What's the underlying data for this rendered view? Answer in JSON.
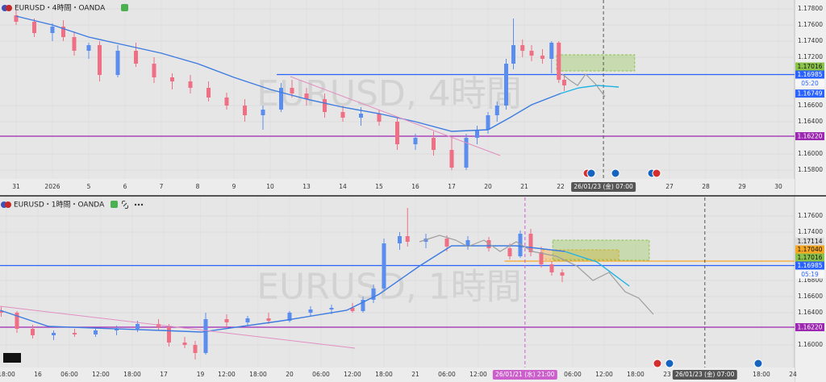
{
  "chart_data": [
    {
      "type": "candlestick",
      "title": "EURUSD・4時間・OANDA",
      "watermark": "EURUSD, 4時間",
      "up_color": "#5b8def",
      "down_color": "#ef6f84",
      "xlim": [
        -0.444,
        21.444
      ],
      "ylim": [
        1.1569,
        1.1791
      ],
      "xticks": [
        {
          "value": 0,
          "label": "31"
        },
        {
          "value": 1,
          "label": "2026"
        },
        {
          "value": 2,
          "label": "5"
        },
        {
          "value": 3,
          "label": "6"
        },
        {
          "value": 4,
          "label": "7"
        },
        {
          "value": 5,
          "label": "8"
        },
        {
          "value": 6,
          "label": "9"
        },
        {
          "value": 7,
          "label": "10"
        },
        {
          "value": 8,
          "label": "13"
        },
        {
          "value": 9,
          "label": "14"
        },
        {
          "value": 10,
          "label": "15"
        },
        {
          "value": 11,
          "label": "16"
        },
        {
          "value": 12,
          "label": "17"
        },
        {
          "value": 13,
          "label": "20"
        },
        {
          "value": 14,
          "label": "21"
        },
        {
          "value": 15,
          "label": "22"
        },
        {
          "value": 18,
          "label": "27"
        },
        {
          "value": 19,
          "label": "28"
        },
        {
          "value": 20,
          "label": "29"
        },
        {
          "value": 21,
          "label": "30"
        }
      ],
      "yticks": [
        {
          "value": 1.178,
          "label": "1.17800"
        },
        {
          "value": 1.176,
          "label": "1.17600"
        },
        {
          "value": 1.174,
          "label": "1.17400"
        },
        {
          "value": 1.172,
          "label": "1.17200"
        },
        {
          "value": 1.166,
          "label": "1.16600"
        },
        {
          "value": 1.164,
          "label": "1.16400"
        },
        {
          "value": 1.16,
          "label": "1.16000"
        },
        {
          "value": 1.158,
          "label": "1.15800"
        }
      ],
      "grid": true,
      "x": [
        0,
        0.5,
        1,
        1.3,
        1.6,
        2,
        2.3,
        2.8,
        3.3,
        3.8,
        4.3,
        4.8,
        5.3,
        5.8,
        6.3,
        6.8,
        7.3,
        7.6,
        8,
        8.5,
        9,
        9.5,
        10,
        10.5,
        11,
        11.5,
        12,
        12.4,
        12.7,
        13,
        13.25,
        13.5,
        13.7,
        13.95,
        14.2,
        14.5,
        14.75,
        14.95,
        15.1
      ],
      "open": [
        1.1772,
        1.1764,
        1.175,
        1.1758,
        1.1745,
        1.1728,
        1.1735,
        1.1698,
        1.1728,
        1.1712,
        1.1695,
        1.169,
        1.1682,
        1.167,
        1.166,
        1.1648,
        1.1655,
        1.1682,
        1.1675,
        1.1668,
        1.1652,
        1.1645,
        1.165,
        1.164,
        1.1612,
        1.162,
        1.1605,
        1.1583,
        1.162,
        1.163,
        1.1648,
        1.166,
        1.1712,
        1.1735,
        1.1728,
        1.1722,
        1.1718,
        1.1738,
        1.1692
      ],
      "high": [
        1.1778,
        1.1768,
        1.1762,
        1.1766,
        1.1752,
        1.1738,
        1.174,
        1.1735,
        1.1738,
        1.172,
        1.17,
        1.1698,
        1.169,
        1.1676,
        1.1668,
        1.166,
        1.1688,
        1.1692,
        1.1682,
        1.1675,
        1.166,
        1.1658,
        1.1655,
        1.1645,
        1.1625,
        1.1628,
        1.162,
        1.1625,
        1.1635,
        1.1652,
        1.1665,
        1.1718,
        1.1768,
        1.1742,
        1.1735,
        1.173,
        1.174,
        1.174,
        1.1698
      ],
      "low": [
        1.176,
        1.1745,
        1.174,
        1.174,
        1.1722,
        1.1718,
        1.169,
        1.1695,
        1.1708,
        1.1688,
        1.168,
        1.1675,
        1.1665,
        1.1655,
        1.164,
        1.163,
        1.1652,
        1.167,
        1.166,
        1.1645,
        1.164,
        1.1635,
        1.1635,
        1.1605,
        1.1605,
        1.1598,
        1.158,
        1.158,
        1.1612,
        1.1625,
        1.164,
        1.1655,
        1.1705,
        1.172,
        1.1715,
        1.1712,
        1.17,
        1.1688,
        1.1678
      ],
      "close": [
        1.1764,
        1.175,
        1.1758,
        1.1745,
        1.1728,
        1.1735,
        1.1698,
        1.1728,
        1.1712,
        1.1695,
        1.169,
        1.1682,
        1.167,
        1.166,
        1.1648,
        1.1655,
        1.1682,
        1.1675,
        1.1668,
        1.1652,
        1.1645,
        1.165,
        1.164,
        1.1612,
        1.162,
        1.1605,
        1.1583,
        1.162,
        1.163,
        1.1648,
        1.166,
        1.1712,
        1.1735,
        1.1728,
        1.1722,
        1.1718,
        1.1738,
        1.1692,
        1.1685
      ],
      "lines": [
        {
          "color": "#3d7be0",
          "x": [
            0,
            1,
            2,
            3,
            4,
            5,
            6,
            7,
            8,
            9,
            10,
            11,
            12,
            13,
            13.6,
            14.2,
            15
          ],
          "values": [
            1.1771,
            1.176,
            1.1745,
            1.1735,
            1.1725,
            1.1712,
            1.1695,
            1.168,
            1.1668,
            1.1658,
            1.165,
            1.164,
            1.1628,
            1.163,
            1.1645,
            1.1661,
            1.1675
          ]
        },
        {
          "color": "#1eb3e6",
          "x": [
            15,
            15.5,
            16,
            16.6
          ],
          "values": [
            1.1675,
            1.1682,
            1.1685,
            1.1683
          ]
        }
      ],
      "levels": [
        {
          "value": 1.16985,
          "color": "#2962ff",
          "from": 7.18
        },
        {
          "value": 1.1622,
          "color": "#9c27b0"
        }
      ],
      "zones": [
        {
          "x": [
            14.89,
            17.04
          ],
          "y": [
            1.1703,
            1.1723
          ],
          "color": "#8bc34a"
        }
      ],
      "crosshairs": [
        {
          "x": 16.18,
          "label": "26/01/23 (金) 07:00",
          "color": "#555555"
        }
      ],
      "tags": [
        {
          "value": 1.17016,
          "label": "1.17016",
          "bg": "#8bc34a",
          "fg": "#111111"
        },
        {
          "value": 1.16985,
          "label": "1.16985",
          "bg": "#2962ff",
          "fg": "#ffffff",
          "countdown": "05:20"
        },
        {
          "value": 1.16749,
          "label": "1.16749",
          "bg": "#2962ff",
          "fg": "#ffffff"
        },
        {
          "value": 1.1622,
          "label": "1.16220",
          "bg": "#9c27b0",
          "fg": "#ffffff"
        }
      ]
    },
    {
      "type": "candlestick",
      "title": "EURUSD・1時間・OANDA",
      "watermark": "EURUSD, 1時間",
      "up_color": "#5b8def",
      "down_color": "#ef6f84",
      "xlim": [
        -1.23,
        150.31
      ],
      "ylim": [
        1.1572,
        1.1783
      ],
      "xticks": [
        {
          "value": 0,
          "label": "18:00"
        },
        {
          "value": 6,
          "label": "16"
        },
        {
          "value": 12,
          "label": "06:00"
        },
        {
          "value": 18,
          "label": "12:00"
        },
        {
          "value": 24,
          "label": "18:00"
        },
        {
          "value": 30,
          "label": "17"
        },
        {
          "value": 37,
          "label": "19"
        },
        {
          "value": 42,
          "label": "12:00"
        },
        {
          "value": 48,
          "label": "18:00"
        },
        {
          "value": 54,
          "label": "20"
        },
        {
          "value": 60,
          "label": "06:00"
        },
        {
          "value": 66,
          "label": "12:00"
        },
        {
          "value": 72,
          "label": "18:00"
        },
        {
          "value": 78,
          "label": "21"
        },
        {
          "value": 84,
          "label": "06:00"
        },
        {
          "value": 90,
          "label": "12:00"
        },
        {
          "value": 108,
          "label": "06:00"
        },
        {
          "value": 114,
          "label": "12:00"
        },
        {
          "value": 120,
          "label": "18:00"
        },
        {
          "value": 126,
          "label": "23"
        },
        {
          "value": 144,
          "label": "18:00"
        },
        {
          "value": 150,
          "label": "24"
        }
      ],
      "yticks": [
        {
          "value": 1.176,
          "label": "1.17600"
        },
        {
          "value": 1.174,
          "label": "1.17400"
        },
        {
          "value": 1.168,
          "label": "1.16800"
        },
        {
          "value": 1.166,
          "label": "1.16600"
        },
        {
          "value": 1.164,
          "label": "1.16400"
        },
        {
          "value": 1.16,
          "label": "1.16000"
        }
      ],
      "grid": true,
      "x": [
        -1,
        2,
        5,
        9,
        13,
        17,
        21,
        25,
        29,
        31,
        34,
        36,
        38,
        42,
        46,
        50,
        54,
        58,
        62,
        66,
        68,
        70,
        72,
        75,
        76.5,
        80,
        84,
        88,
        92,
        96,
        98,
        100,
        102,
        104,
        106
      ],
      "open": [
        1.1642,
        1.164,
        1.162,
        1.1612,
        1.1615,
        1.1613,
        1.1618,
        1.162,
        1.1626,
        1.1622,
        1.1603,
        1.16,
        1.159,
        1.1632,
        1.1628,
        1.1633,
        1.163,
        1.164,
        1.1644,
        1.1646,
        1.1642,
        1.1656,
        1.167,
        1.1726,
        1.1735,
        1.1728,
        1.1732,
        1.1722,
        1.173,
        1.172,
        1.171,
        1.1738,
        1.1715,
        1.17,
        1.169
      ],
      "high": [
        1.1648,
        1.1642,
        1.1625,
        1.1618,
        1.162,
        1.162,
        1.1624,
        1.163,
        1.1632,
        1.1626,
        1.161,
        1.1605,
        1.164,
        1.1638,
        1.1636,
        1.164,
        1.1642,
        1.1648,
        1.165,
        1.1652,
        1.166,
        1.1675,
        1.1732,
        1.174,
        1.177,
        1.1738,
        1.1736,
        1.1735,
        1.1734,
        1.1726,
        1.1742,
        1.1744,
        1.1722,
        1.1704,
        1.1694
      ],
      "low": [
        1.1635,
        1.1615,
        1.1608,
        1.1606,
        1.161,
        1.161,
        1.1612,
        1.1616,
        1.1618,
        1.1598,
        1.1596,
        1.1582,
        1.1588,
        1.1622,
        1.1624,
        1.1626,
        1.1628,
        1.1636,
        1.1638,
        1.164,
        1.164,
        1.1652,
        1.1668,
        1.1718,
        1.1722,
        1.172,
        1.1716,
        1.1718,
        1.1716,
        1.1706,
        1.1708,
        1.171,
        1.1696,
        1.1686,
        1.1678
      ],
      "close": [
        1.164,
        1.162,
        1.1612,
        1.1615,
        1.1613,
        1.1618,
        1.162,
        1.1626,
        1.1622,
        1.1603,
        1.16,
        1.159,
        1.1632,
        1.1628,
        1.1633,
        1.163,
        1.164,
        1.1644,
        1.1646,
        1.1642,
        1.1656,
        1.167,
        1.1726,
        1.1735,
        1.1728,
        1.1732,
        1.1722,
        1.173,
        1.172,
        1.171,
        1.1738,
        1.1715,
        1.17,
        1.169,
        1.1686
      ],
      "lines": [
        {
          "color": "#3d7be0",
          "x": [
            -1.2,
            8,
            29.5,
            37.2,
            52.6,
            64.9,
            71.1,
            78.8,
            84.9,
            97.2,
            106.5
          ],
          "values": [
            1.1643,
            1.1623,
            1.1618,
            1.1616,
            1.163,
            1.1643,
            1.1663,
            1.1698,
            1.1723,
            1.1723,
            1.1716
          ]
        },
        {
          "color": "#1eb3e6",
          "x": [
            106.5,
            112.6,
            118.8
          ],
          "values": [
            1.1716,
            1.1703,
            1.1673
          ]
        }
      ],
      "levels": [
        {
          "value": 1.16985,
          "color": "#2962ff"
        },
        {
          "value": 1.1622,
          "color": "#9c27b0"
        },
        {
          "value": 1.1704,
          "color": "#f5a623",
          "from": 95
        }
      ],
      "zones": [
        {
          "x": [
            102.3,
            116.8
          ],
          "y": [
            1.1706,
            1.1718
          ],
          "color": "#f5a623"
        },
        {
          "x": [
            104.2,
            122.6
          ],
          "y": [
            1.1705,
            1.173
          ],
          "color": "#8bc34a"
        }
      ],
      "crosshairs": [
        {
          "x": 98.9,
          "label": "26/01/21 (水) 21:00",
          "color": "#cc5fcc"
        },
        {
          "x": 133.2,
          "label": "26/01/23 (金) 07:00",
          "color": "#555555"
        }
      ],
      "tags": [
        {
          "value": 1.17114,
          "label": "1.17114",
          "bg": "#dcdcdc",
          "fg": "#111111"
        },
        {
          "value": 1.1704,
          "label": "1.17040",
          "bg": "#f5a623",
          "fg": "#111111"
        },
        {
          "value": 1.17016,
          "label": "1.17016",
          "bg": "#8bc34a",
          "fg": "#111111"
        },
        {
          "value": 1.16985,
          "label": "1.16985",
          "bg": "#2962ff",
          "fg": "#ffffff",
          "countdown": "05:19"
        },
        {
          "value": 1.1622,
          "label": "1.16220",
          "bg": "#9c27b0",
          "fg": "#ffffff"
        }
      ]
    }
  ]
}
